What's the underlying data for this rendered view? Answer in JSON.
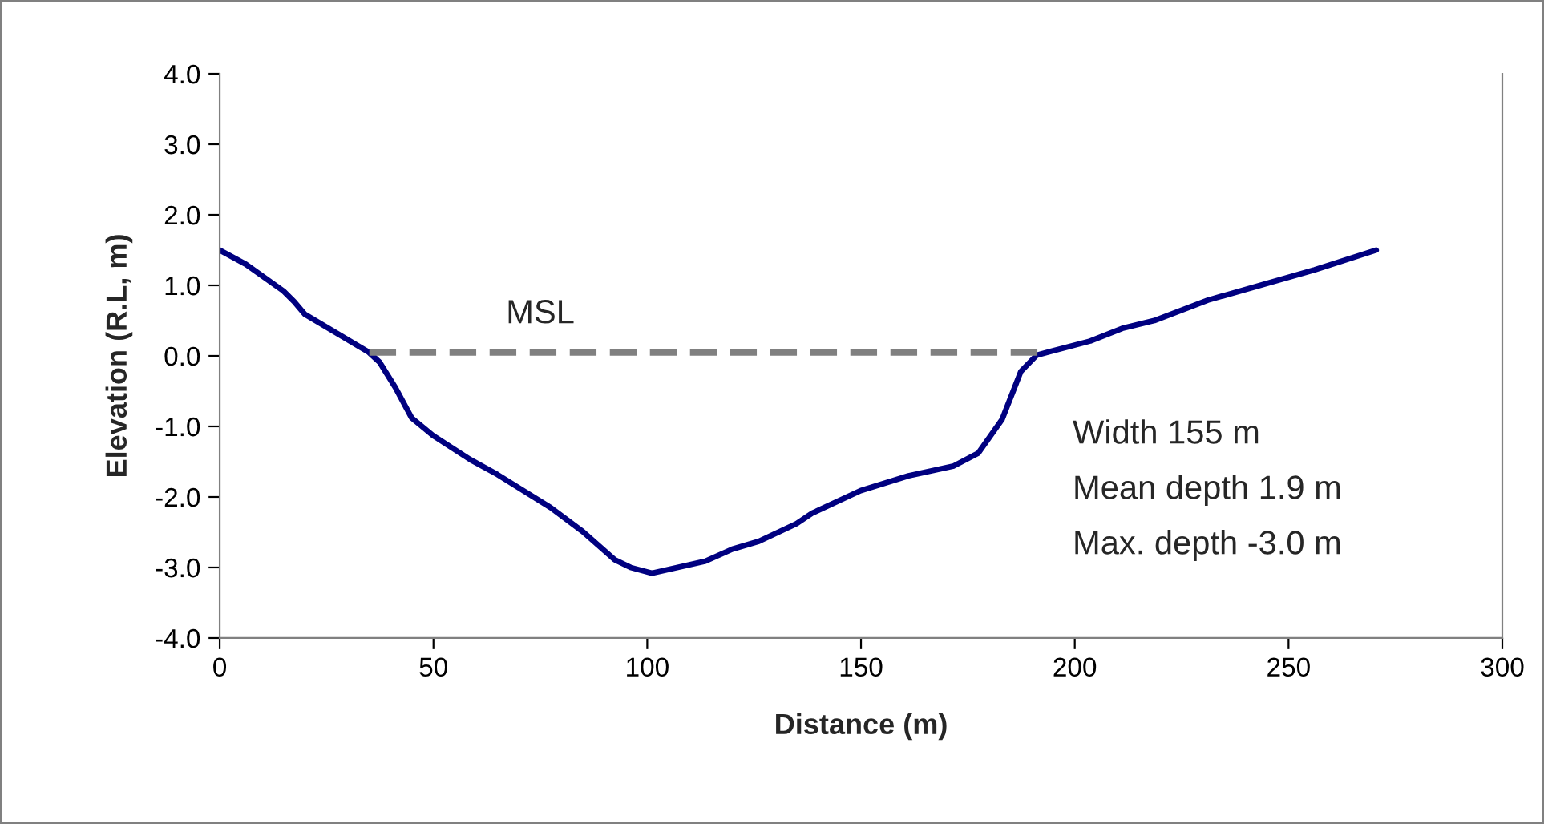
{
  "chart_data": {
    "type": "line",
    "xlabel": "Distance (m)",
    "ylabel": "Elevation (R.L, m)",
    "xlim": [
      0,
      300
    ],
    "xticks": [
      0,
      50,
      100,
      150,
      200,
      250,
      300
    ],
    "ylim": [
      -4,
      4
    ],
    "yticks": [
      {
        "value": -4,
        "label": "-4.0"
      },
      {
        "value": -3,
        "label": "-3.0"
      },
      {
        "value": -2,
        "label": "-2.0"
      },
      {
        "value": -1,
        "label": "-1.0"
      },
      {
        "value": 0,
        "label": "0.0"
      },
      {
        "value": 1,
        "label": "1.0"
      },
      {
        "value": 2,
        "label": "2.0"
      },
      {
        "value": 3,
        "label": "3.0"
      },
      {
        "value": 4,
        "label": "4.0"
      }
    ],
    "marker": "none",
    "series": [
      {
        "color": "#000080",
        "line_style": "solid",
        "x": [
          0,
          6.1,
          14.9,
          17.4,
          19.9,
          34.9,
          37.4,
          41.1,
          44.9,
          49.9,
          58.6,
          64.9,
          77.4,
          84.9,
          92.4,
          96.1,
          101.1,
          108.6,
          113.6,
          119.9,
          126.1,
          134.9,
          138.6,
          149.9,
          161.1,
          171.7,
          177.4,
          183,
          187.4,
          191.1,
          194.2,
          203.6,
          211.1,
          218.6,
          231.1,
          256.1,
          270.5
        ],
        "values": [
          1.5,
          1.3,
          0.92,
          0.77,
          0.59,
          0.05,
          -0.09,
          -0.45,
          -0.88,
          -1.13,
          -1.47,
          -1.68,
          -2.15,
          -2.49,
          -2.89,
          -3.0,
          -3.08,
          -2.98,
          -2.91,
          -2.74,
          -2.63,
          -2.38,
          -2.23,
          -1.91,
          -1.7,
          -1.56,
          -1.38,
          -0.9,
          -0.22,
          0.01,
          0.06,
          0.21,
          0.39,
          0.5,
          0.79,
          1.22,
          1.5
        ]
      },
      {
        "color": "#808080",
        "line_style": "dashed",
        "x": [
          35,
          194
        ],
        "values": [
          0.05,
          0.05
        ]
      }
    ],
    "annotations": [
      {
        "text": "MSL",
        "x": 75,
        "y": 0.05
      },
      "Width 155 m",
      "Mean depth 1.9 m",
      "Max. depth -3.0 m"
    ]
  }
}
